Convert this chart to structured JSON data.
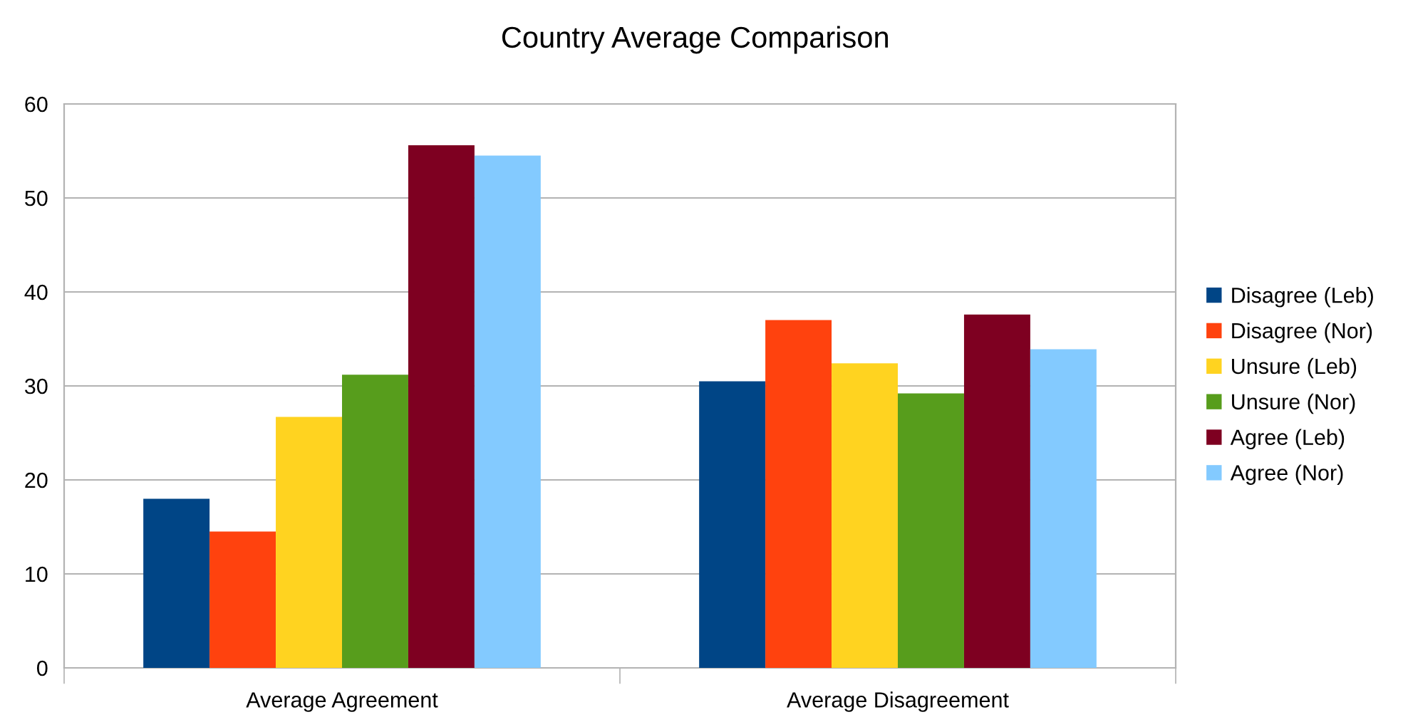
{
  "chart_data": {
    "type": "bar",
    "title": "Country Average Comparison",
    "categories": [
      "Average Agreement",
      "Average Disagreement"
    ],
    "series": [
      {
        "name": "Disagree (Leb)",
        "color": "#004586",
        "values": [
          18.0,
          30.5
        ]
      },
      {
        "name": "Disagree (Nor)",
        "color": "#ff420e",
        "values": [
          14.5,
          37.0
        ]
      },
      {
        "name": "Unsure (Leb)",
        "color": "#ffd320",
        "values": [
          26.7,
          32.4
        ]
      },
      {
        "name": "Unsure (Nor)",
        "color": "#579d1c",
        "values": [
          31.2,
          29.2
        ]
      },
      {
        "name": "Agree (Leb)",
        "color": "#7e0021",
        "values": [
          55.6,
          37.6
        ]
      },
      {
        "name": "Agree (Nor)",
        "color": "#83caff",
        "values": [
          54.5,
          33.9
        ]
      }
    ],
    "ylim": [
      0,
      60
    ],
    "yticks": [
      0,
      10,
      20,
      30,
      40,
      50,
      60
    ],
    "grid": "y",
    "legend": "right"
  }
}
